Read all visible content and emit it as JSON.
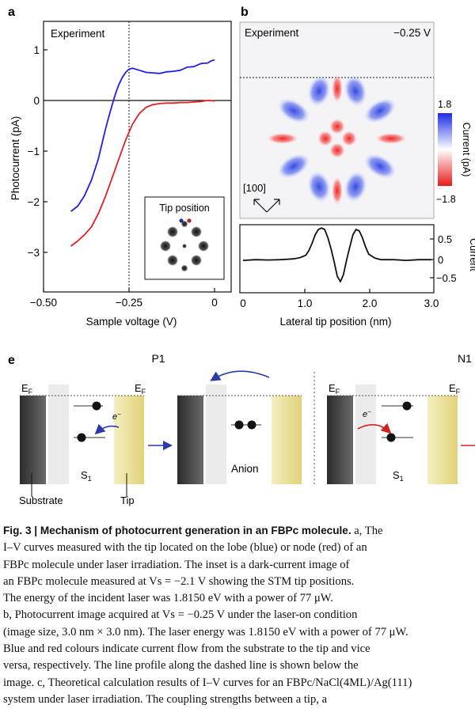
{
  "panels": {
    "a": {
      "label": "a",
      "inset_title": "Experiment",
      "xlabel": "Sample voltage (V)",
      "ylabel": "Photocurrent (pA)",
      "inset_label": "Tip position",
      "xticks": [
        "−0.50",
        "−0.25",
        "0"
      ],
      "yticks": [
        "1",
        "0",
        "−1",
        "−2",
        "−3"
      ]
    },
    "b": {
      "label": "b",
      "title": "Experiment",
      "voltage": "−0.25 V",
      "colorbar_max": "1.8",
      "colorbar_min": "−1.8",
      "colorbar_label": "Current (pA)",
      "direction": "[100]",
      "xlabel": "Lateral tip position (nm)",
      "xticks": [
        "0",
        "1.0",
        "2.0",
        "3.0"
      ],
      "yticks": [
        "0.5",
        "0",
        "−0.5"
      ],
      "ylabel": "Current"
    },
    "e": {
      "label": "e",
      "p1": "P1",
      "n1": "N1",
      "ef": "E",
      "ef_sub": "F",
      "electron": "e",
      "electron_sup": "−",
      "s1": "S",
      "s1_sub": "1",
      "substrate": "Substrate",
      "tip": "Tip",
      "anion": "Anion"
    }
  },
  "caption": {
    "fig_label": "Fig. 3 | ",
    "title": "Mechanism of photocurrent generation in an FBPc molecule.",
    "lines": [
      " a, The",
      "I–V curves measured with the tip located on the lobe (blue) or node (red) of an",
      "FBPc molecule under laser irradiation. The inset is a dark-current image of",
      "an FBPc molecule measured at Vs = −2.1 V showing the STM tip positions.",
      "The energy of the incident laser was 1.8150 eV with a power of 77 μW.",
      "b, Photocurrent image acquired at Vs = −0.25 V under the laser-on condition",
      "(image size, 3.0 nm × 3.0 nm). The laser energy was 1.8150 eV with a power of 77 μW.",
      "Blue and red colours indicate current flow from the substrate to the tip and vice",
      "versa, respectively. The line profile along the dashed line is shown below the",
      "image. c, Theoretical calculation results of I–V curves for an FBPc/NaCl(4ML)/Ag(111)",
      "system under laser irradiation. The coupling strengths between a tip, a"
    ]
  },
  "chart_data": [
    {
      "type": "line",
      "xlabel": "Sample voltage (V)",
      "ylabel": "Photocurrent (pA)",
      "xlim": [
        -0.5,
        0.0
      ],
      "ylim": [
        -3.6,
        1.6
      ],
      "series": [
        {
          "color": "#1f1fe6",
          "x": [
            -0.42,
            -0.4,
            -0.38,
            -0.36,
            -0.34,
            -0.33,
            -0.32,
            -0.31,
            -0.3,
            -0.29,
            -0.28,
            -0.27,
            -0.26,
            -0.25,
            -0.24,
            -0.22,
            -0.2,
            -0.18,
            -0.16,
            -0.14,
            -0.12,
            -0.1,
            -0.08,
            -0.06,
            -0.04,
            -0.02,
            -0.01,
            0.0
          ],
          "y": [
            -2.05,
            -1.95,
            -1.75,
            -1.45,
            -1.05,
            -0.78,
            -0.5,
            -0.25,
            -0.02,
            0.2,
            0.38,
            0.52,
            0.62,
            0.68,
            0.7,
            0.66,
            0.62,
            0.61,
            0.6,
            0.63,
            0.64,
            0.66,
            0.72,
            0.73,
            0.79,
            0.8,
            0.84,
            0.86
          ]
        },
        {
          "color": "#e32020",
          "x": [
            -0.42,
            -0.4,
            -0.38,
            -0.36,
            -0.34,
            -0.32,
            -0.3,
            -0.28,
            -0.26,
            -0.24,
            -0.22,
            -0.2,
            -0.18,
            -0.16,
            -0.14,
            -0.12,
            -0.1,
            -0.08,
            -0.06,
            -0.04,
            -0.02,
            0.0
          ],
          "y": [
            -2.72,
            -2.62,
            -2.5,
            -2.35,
            -2.1,
            -1.78,
            -1.42,
            -1.05,
            -0.68,
            -0.38,
            -0.17,
            -0.05,
            0.0,
            0.02,
            0.03,
            0.03,
            0.04,
            0.04,
            0.05,
            0.06,
            0.08,
            0.07
          ]
        }
      ]
    },
    {
      "type": "line",
      "xlabel": "Lateral tip position (nm)",
      "ylabel": "Current",
      "xlim": [
        0,
        3.0
      ],
      "ylim": [
        -0.9,
        0.95
      ],
      "series": [
        {
          "color": "#111111",
          "x": [
            0.0,
            0.2,
            0.4,
            0.6,
            0.8,
            0.9,
            1.0,
            1.05,
            1.1,
            1.15,
            1.2,
            1.25,
            1.3,
            1.35,
            1.4,
            1.45,
            1.5,
            1.55,
            1.6,
            1.65,
            1.7,
            1.75,
            1.8,
            1.85,
            1.9,
            1.95,
            2.0,
            2.1,
            2.2,
            2.4,
            2.6,
            2.8,
            3.0
          ],
          "y": [
            -0.02,
            0.0,
            -0.01,
            0.0,
            0.02,
            0.05,
            0.12,
            0.25,
            0.45,
            0.68,
            0.82,
            0.86,
            0.82,
            0.6,
            0.3,
            -0.05,
            -0.45,
            -0.6,
            -0.4,
            0.0,
            0.35,
            0.68,
            0.82,
            0.78,
            0.6,
            0.35,
            0.15,
            0.04,
            0.0,
            0.0,
            -0.02,
            0.0,
            0.0
          ]
        }
      ]
    }
  ]
}
